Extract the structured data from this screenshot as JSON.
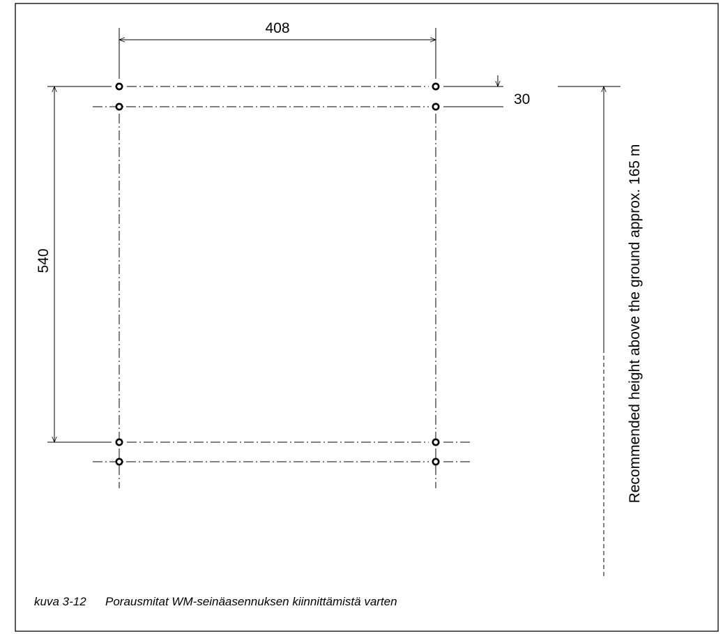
{
  "dimensions": {
    "width_label": "408",
    "height_label": "540",
    "offset_label": "30"
  },
  "note": {
    "recommended_height": "Recommended height above the ground approx. 165 m"
  },
  "caption": {
    "figure_number": "kuva 3-12",
    "text": "Porausmitat WM-seinäasennuksen kiinnittämistä varten"
  }
}
